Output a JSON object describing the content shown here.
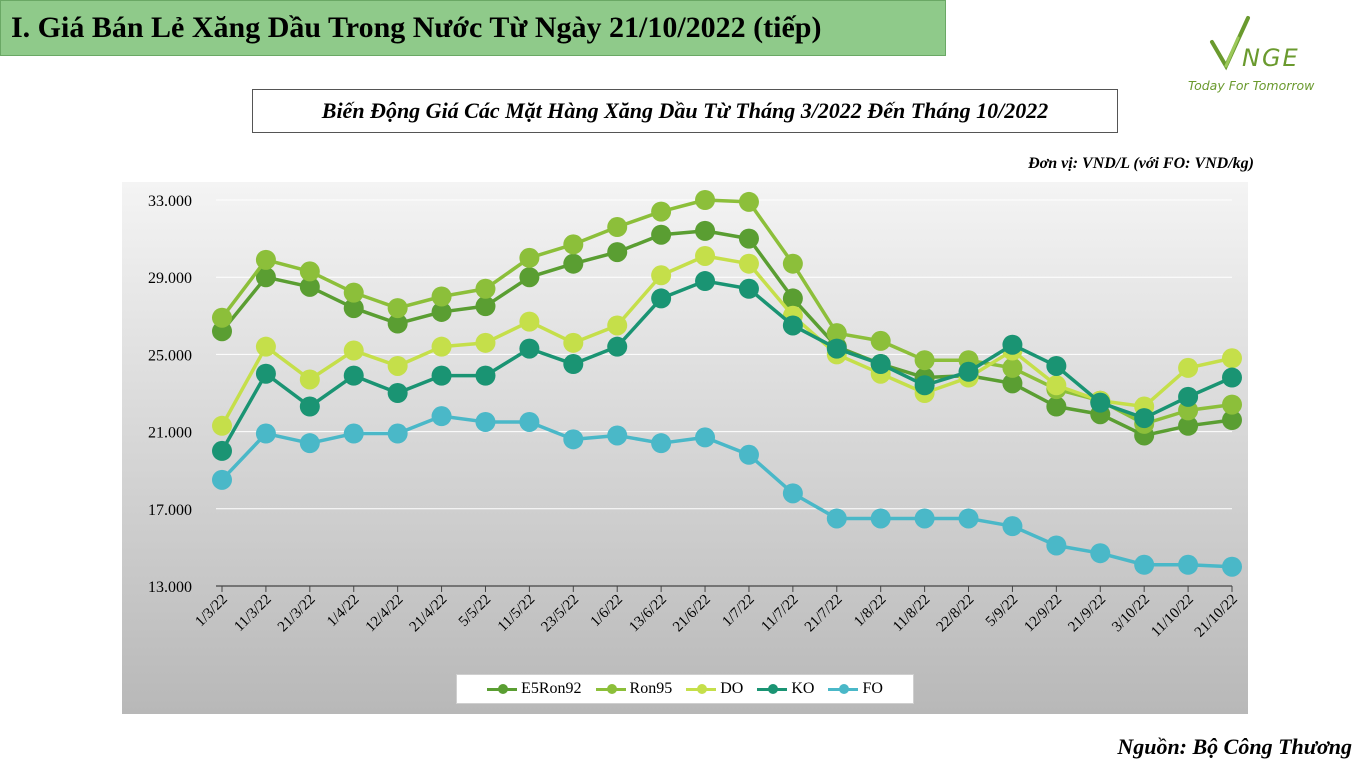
{
  "header": {
    "title": "I. Giá Bán Lẻ Xăng Dầu Trong Nước Từ Ngày 21/10/2022 (tiếp)"
  },
  "logo": {
    "text": "VNGE",
    "tagline": "Today For Tomorrow",
    "color": "#6a9a2e"
  },
  "unit_note": "Đơn vị: VND/L (với FO: VND/kg)",
  "source": "Nguồn: Bộ Công Thương",
  "chart_data": {
    "type": "line",
    "title": "Biến Động Giá Các Mặt Hàng Xăng Dầu Từ Tháng 3/2022 Đến Tháng 10/2022",
    "xlabel": "",
    "ylabel": "",
    "ylim": [
      13000,
      33000
    ],
    "yticks": [
      13000,
      17000,
      21000,
      25000,
      29000,
      33000
    ],
    "ytick_labels": [
      "13.000",
      "17.000",
      "21.000",
      "25.000",
      "29.000",
      "33.000"
    ],
    "grid": true,
    "legend_position": "bottom",
    "categories": [
      "1/3/22",
      "11/3/22",
      "21/3/22",
      "1/4/22",
      "12/4/22",
      "21/4/22",
      "5/5/22",
      "11/5/22",
      "23/5/22",
      "1/6/22",
      "13/6/22",
      "21/6/22",
      "1/7/22",
      "11/7/22",
      "21/7/22",
      "1/8/22",
      "11/8/22",
      "22/8/22",
      "5/9/22",
      "12/9/22",
      "21/9/22",
      "3/10/22",
      "11/10/22",
      "21/10/22"
    ],
    "series": [
      {
        "name": "E5Ron92",
        "color": "#5a9e32",
        "values": [
          26200,
          29000,
          28500,
          27400,
          26600,
          27200,
          27500,
          29000,
          29700,
          30300,
          31200,
          31400,
          31000,
          27900,
          25400,
          24500,
          23800,
          23900,
          23500,
          22300,
          21900,
          20800,
          21300,
          21600
        ]
      },
      {
        "name": "Ron95",
        "color": "#8cbf3a",
        "values": [
          26900,
          29900,
          29300,
          28200,
          27400,
          28000,
          28400,
          30000,
          30700,
          31600,
          32400,
          33000,
          32900,
          29700,
          26100,
          25700,
          24700,
          24700,
          24300,
          23200,
          22600,
          21400,
          22100,
          22400
        ]
      },
      {
        "name": "DO",
        "color": "#c5df4a",
        "values": [
          21300,
          25400,
          23700,
          25200,
          24400,
          25400,
          25600,
          26700,
          25600,
          26500,
          29100,
          30100,
          29700,
          27000,
          25000,
          24000,
          23000,
          23800,
          25200,
          23400,
          22600,
          22300,
          24300,
          24800
        ]
      },
      {
        "name": "KO",
        "color": "#1a9473",
        "values": [
          20000,
          24000,
          22300,
          23900,
          23000,
          23900,
          23900,
          25300,
          24500,
          25400,
          27900,
          28800,
          28400,
          26500,
          25300,
          24500,
          23400,
          24100,
          25500,
          24400,
          22500,
          21700,
          22800,
          23800
        ]
      },
      {
        "name": "FO",
        "color": "#4ab8c8",
        "values": [
          18500,
          20900,
          20400,
          20900,
          20900,
          21800,
          21500,
          21500,
          20600,
          20800,
          20400,
          20700,
          19800,
          17800,
          16500,
          16500,
          16500,
          16500,
          16100,
          15100,
          14700,
          14100,
          14100,
          14000
        ]
      }
    ]
  }
}
